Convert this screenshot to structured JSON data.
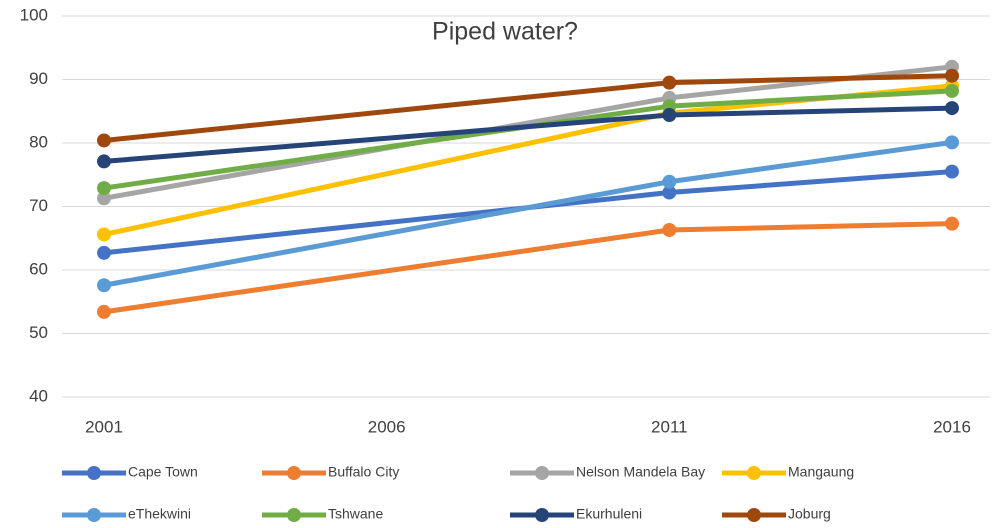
{
  "chart_data": {
    "type": "line",
    "title": "Piped water?",
    "x": [
      2001,
      2011,
      2016
    ],
    "xlim": [
      2001,
      2016
    ],
    "xticks": [
      2001,
      2006,
      2011,
      2016
    ],
    "ylim": [
      40,
      100
    ],
    "yticks": [
      40,
      50,
      60,
      70,
      80,
      90,
      100
    ],
    "grid": true,
    "legend": "bottom",
    "series": [
      {
        "name": "Cape Town",
        "color": "#4472c4",
        "values": [
          62.7,
          72.2,
          75.5
        ]
      },
      {
        "name": "Buffalo City",
        "color": "#ed7d31",
        "values": [
          53.4,
          66.3,
          67.3
        ]
      },
      {
        "name": "Nelson Mandela Bay",
        "color": "#a5a5a5",
        "values": [
          71.3,
          87.1,
          92
        ]
      },
      {
        "name": "Mangaung",
        "color": "#ffc000",
        "values": [
          65.6,
          84.7,
          89
        ]
      },
      {
        "name": "eThekwini",
        "color": "#5b9bd5",
        "values": [
          57.6,
          73.9,
          80.1
        ]
      },
      {
        "name": "Tshwane",
        "color": "#70ad47",
        "values": [
          72.9,
          85.8,
          88.2
        ]
      },
      {
        "name": "Ekurhuleni",
        "color": "#264478",
        "values": [
          77.1,
          84.4,
          85.5
        ]
      },
      {
        "name": "Joburg",
        "color": "#9e480e",
        "values": [
          80.4,
          89.5,
          90.6
        ]
      }
    ]
  }
}
